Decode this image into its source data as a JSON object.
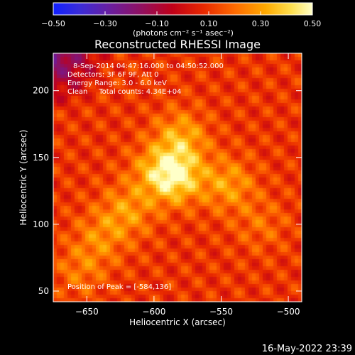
{
  "chart_data": {
    "type": "heatmap",
    "title": "Reconstructed RHESSI Image",
    "xlabel": "Heliocentric X (arcsec)",
    "ylabel": "Heliocentric Y (arcsec)",
    "xlim": [
      -675,
      -490
    ],
    "ylim": [
      42,
      228
    ],
    "x_ticks": [
      -650,
      -600,
      -550,
      -500
    ],
    "y_ticks": [
      50,
      100,
      150,
      200
    ],
    "colorbar": {
      "range": [
        -0.5,
        0.5
      ],
      "ticks": [
        "-0.50",
        "-0.30",
        "-0.10",
        "0.10",
        "0.30",
        "0.50"
      ],
      "unit_label": "(photons cm⁻² s⁻¹ asec⁻²)"
    },
    "info_lines": [
      "8-Sep-2014 04:47:16.000 to 04:50:52.000",
      "Detectors: 3F 6F 9F, Att 0",
      "Energy Range: 3.0 - 6.0 keV",
      "Clean     Total counts: 4.34E+04"
    ],
    "peak_label": "Position of Peak = [-584,136]",
    "peak": {
      "x": -584,
      "y": 136
    },
    "sources": [
      {
        "x": -584,
        "y": 136,
        "amp": 0.9
      },
      {
        "x": -580,
        "y": 165,
        "amp": 0.55
      },
      {
        "x": -545,
        "y": 130,
        "amp": 0.5
      },
      {
        "x": -620,
        "y": 110,
        "amp": 0.45
      },
      {
        "x": -640,
        "y": 90,
        "amp": 0.35
      },
      {
        "x": -655,
        "y": 65,
        "amp": 0.3
      },
      {
        "x": -600,
        "y": 140,
        "amp": 0.35
      },
      {
        "x": -520,
        "y": 100,
        "amp": 0.25
      }
    ]
  },
  "footer": {
    "timestamp": "16-May-2022 23:39"
  }
}
